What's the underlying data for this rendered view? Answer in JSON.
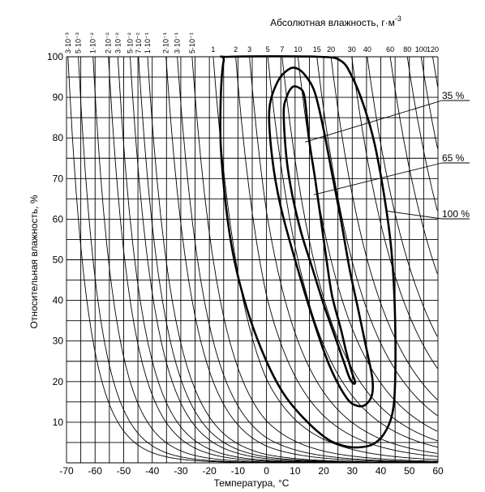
{
  "chart_data": {
    "type": "line",
    "title": "",
    "xlabel": "Температура, °С",
    "ylabel": "Относительная влажность, %",
    "x2label": "Абсолютная влажность, г·м",
    "x2label_sup": "-3",
    "xlim": [
      -70,
      60
    ],
    "ylim": [
      0,
      100
    ],
    "grid": true,
    "x_ticks": [
      -70,
      -60,
      -50,
      -40,
      -30,
      -20,
      -10,
      0,
      10,
      20,
      30,
      40,
      50,
      60
    ],
    "y_ticks": [
      10,
      20,
      30,
      40,
      50,
      60,
      70,
      80,
      90,
      100
    ],
    "absolute_humidity_ticks": [
      {
        "label": "3·10⁻³",
        "value": 0.003
      },
      {
        "label": "5·10⁻³",
        "value": 0.005
      },
      {
        "label": "1·10⁻²",
        "value": 0.01
      },
      {
        "label": "2·10⁻²",
        "value": 0.02
      },
      {
        "label": "3·10⁻²",
        "value": 0.03
      },
      {
        "label": "5·10⁻²",
        "value": 0.05
      },
      {
        "label": "7·10⁻²",
        "value": 0.07
      },
      {
        "label": "1·10⁻¹",
        "value": 0.1
      },
      {
        "label": "2·10⁻¹",
        "value": 0.2
      },
      {
        "label": "3·10⁻¹",
        "value": 0.3
      },
      {
        "label": "5·10⁻¹",
        "value": 0.5
      },
      {
        "label": "1",
        "value": 1
      },
      {
        "label": "2",
        "value": 2
      },
      {
        "label": "3",
        "value": 3
      },
      {
        "label": "5",
        "value": 5
      },
      {
        "label": "7",
        "value": 7
      },
      {
        "label": "10",
        "value": 10
      },
      {
        "label": "15",
        "value": 15
      },
      {
        "label": "20",
        "value": 20
      },
      {
        "label": "30",
        "value": 30
      },
      {
        "label": "40",
        "value": 40
      },
      {
        "label": "60",
        "value": 60
      },
      {
        "label": "80",
        "value": 80
      },
      {
        "label": "100",
        "value": 100
      },
      {
        "label": "120",
        "value": 120
      }
    ],
    "series": [
      {
        "name": "100 %",
        "points": [
          [
            -15,
            99
          ],
          [
            -13,
            100
          ],
          [
            18,
            100
          ],
          [
            26,
            99
          ],
          [
            30,
            95
          ],
          [
            34,
            88
          ],
          [
            38,
            78
          ],
          [
            42,
            62
          ],
          [
            44,
            50
          ],
          [
            45,
            35
          ],
          [
            45,
            20
          ],
          [
            44,
            12
          ],
          [
            41,
            7
          ],
          [
            37,
            4.5
          ],
          [
            32,
            3.8
          ],
          [
            27,
            4.2
          ],
          [
            21,
            6
          ],
          [
            13,
            11
          ],
          [
            6,
            17
          ],
          [
            0,
            25
          ],
          [
            -6,
            36
          ],
          [
            -11,
            49
          ],
          [
            -14,
            62
          ],
          [
            -16,
            78
          ],
          [
            -16,
            90
          ],
          [
            -15,
            99
          ]
        ]
      },
      {
        "name": "65 %",
        "points": [
          [
            1,
            87
          ],
          [
            4,
            94
          ],
          [
            8,
            97
          ],
          [
            11,
            97
          ],
          [
            14,
            95
          ],
          [
            17,
            91
          ],
          [
            20,
            82
          ],
          [
            23,
            71
          ],
          [
            26,
            60
          ],
          [
            29,
            48
          ],
          [
            32,
            38
          ],
          [
            35,
            28
          ],
          [
            37,
            21
          ],
          [
            37,
            17
          ],
          [
            35,
            14.5
          ],
          [
            32,
            14
          ],
          [
            28,
            16
          ],
          [
            22,
            24
          ],
          [
            16,
            36
          ],
          [
            10,
            50
          ],
          [
            5,
            63
          ],
          [
            2,
            75
          ],
          [
            1,
            87
          ]
        ]
      },
      {
        "name": "35 %",
        "points": [
          [
            6,
            86
          ],
          [
            7,
            90
          ],
          [
            9,
            92.5
          ],
          [
            11,
            92.5
          ],
          [
            13,
            91
          ],
          [
            14,
            86
          ],
          [
            15,
            79
          ],
          [
            17,
            70
          ],
          [
            19,
            60
          ],
          [
            21,
            50
          ],
          [
            23,
            41
          ],
          [
            26,
            33
          ],
          [
            28,
            27
          ],
          [
            30,
            22
          ],
          [
            31,
            20
          ],
          [
            30.5,
            19.5
          ],
          [
            29,
            21
          ],
          [
            27,
            25
          ],
          [
            24,
            31
          ],
          [
            20,
            39
          ],
          [
            16,
            48
          ],
          [
            12,
            57
          ],
          [
            9,
            66
          ],
          [
            7,
            75
          ],
          [
            6,
            86
          ]
        ]
      }
    ],
    "annotations": [
      {
        "text": "35 %",
        "x": 13.5,
        "y": 79
      },
      {
        "text": "65 %",
        "x": 16.5,
        "y": 66
      },
      {
        "text": "100 %",
        "x": 42,
        "y": 62
      }
    ]
  }
}
